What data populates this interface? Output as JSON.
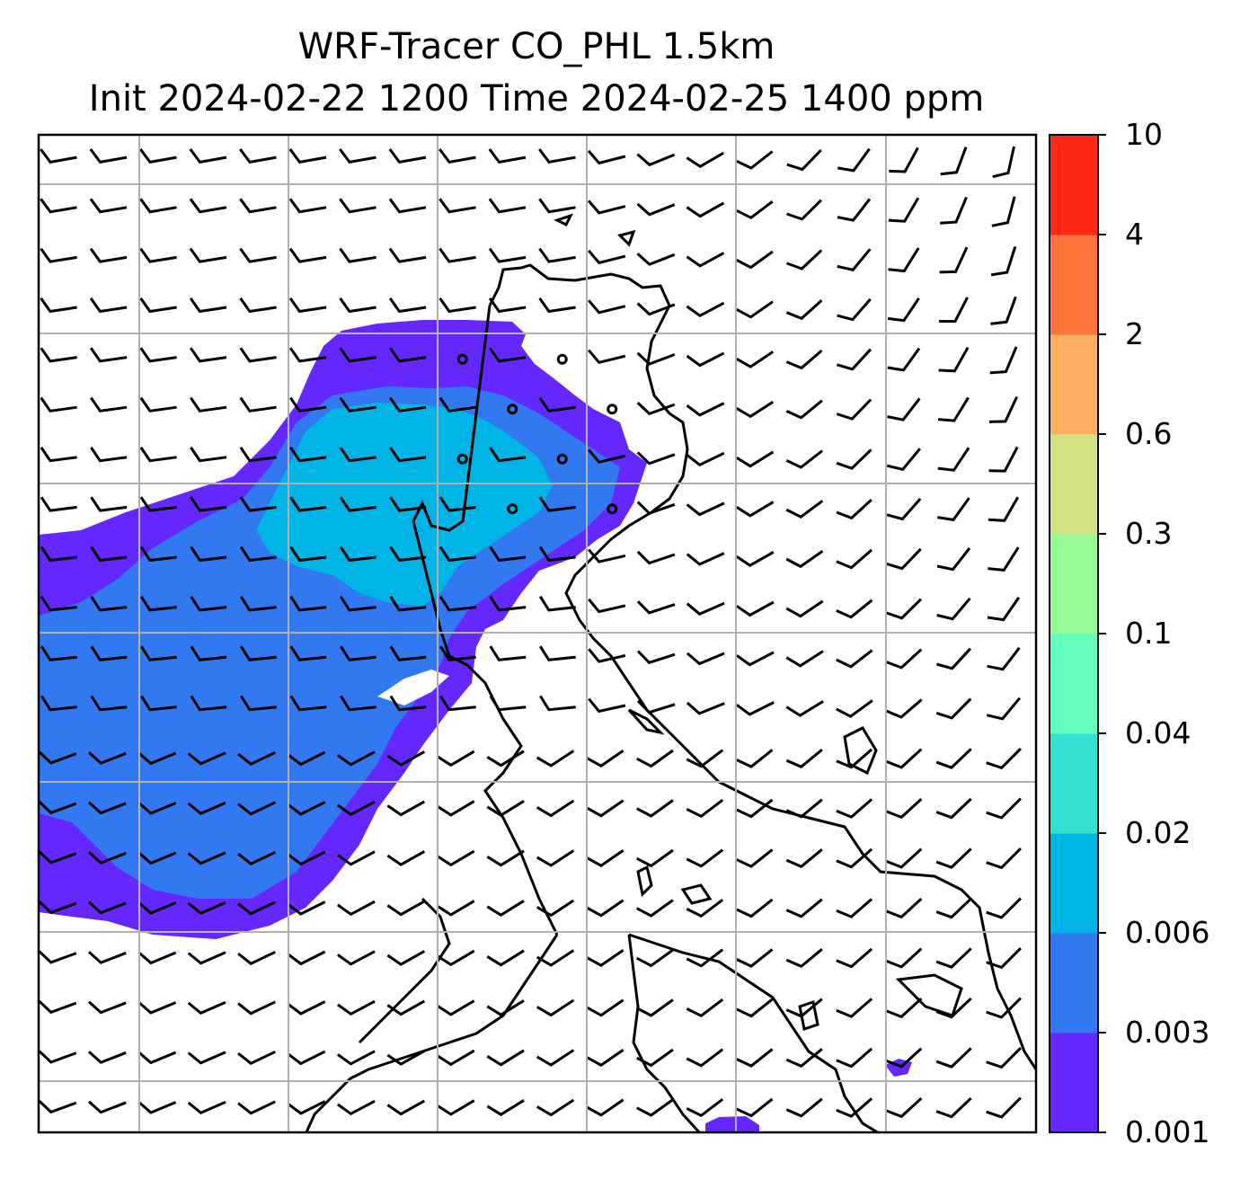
{
  "title": {
    "line1": "WRF-Tracer CO_PHL 1.5km",
    "line2": "Init 2024-02-22 1200 Time 2024-02-25 1400 ppm"
  },
  "colorbar": {
    "levels": [
      "0.001",
      "0.003",
      "0.006",
      "0.02",
      "0.04",
      "0.1",
      "0.3",
      "0.6",
      "2",
      "4",
      "10"
    ],
    "colors": [
      "#6428ff",
      "#3278f0",
      "#00b4e6",
      "#32e1d2",
      "#64ffbe",
      "#96fa96",
      "#d2e182",
      "#ffaf5f",
      "#ff733c",
      "#ff2814"
    ]
  },
  "map": {
    "wind_color": "#000000",
    "grid_color": "#b0b0b0",
    "coast_color": "#000000"
  }
}
